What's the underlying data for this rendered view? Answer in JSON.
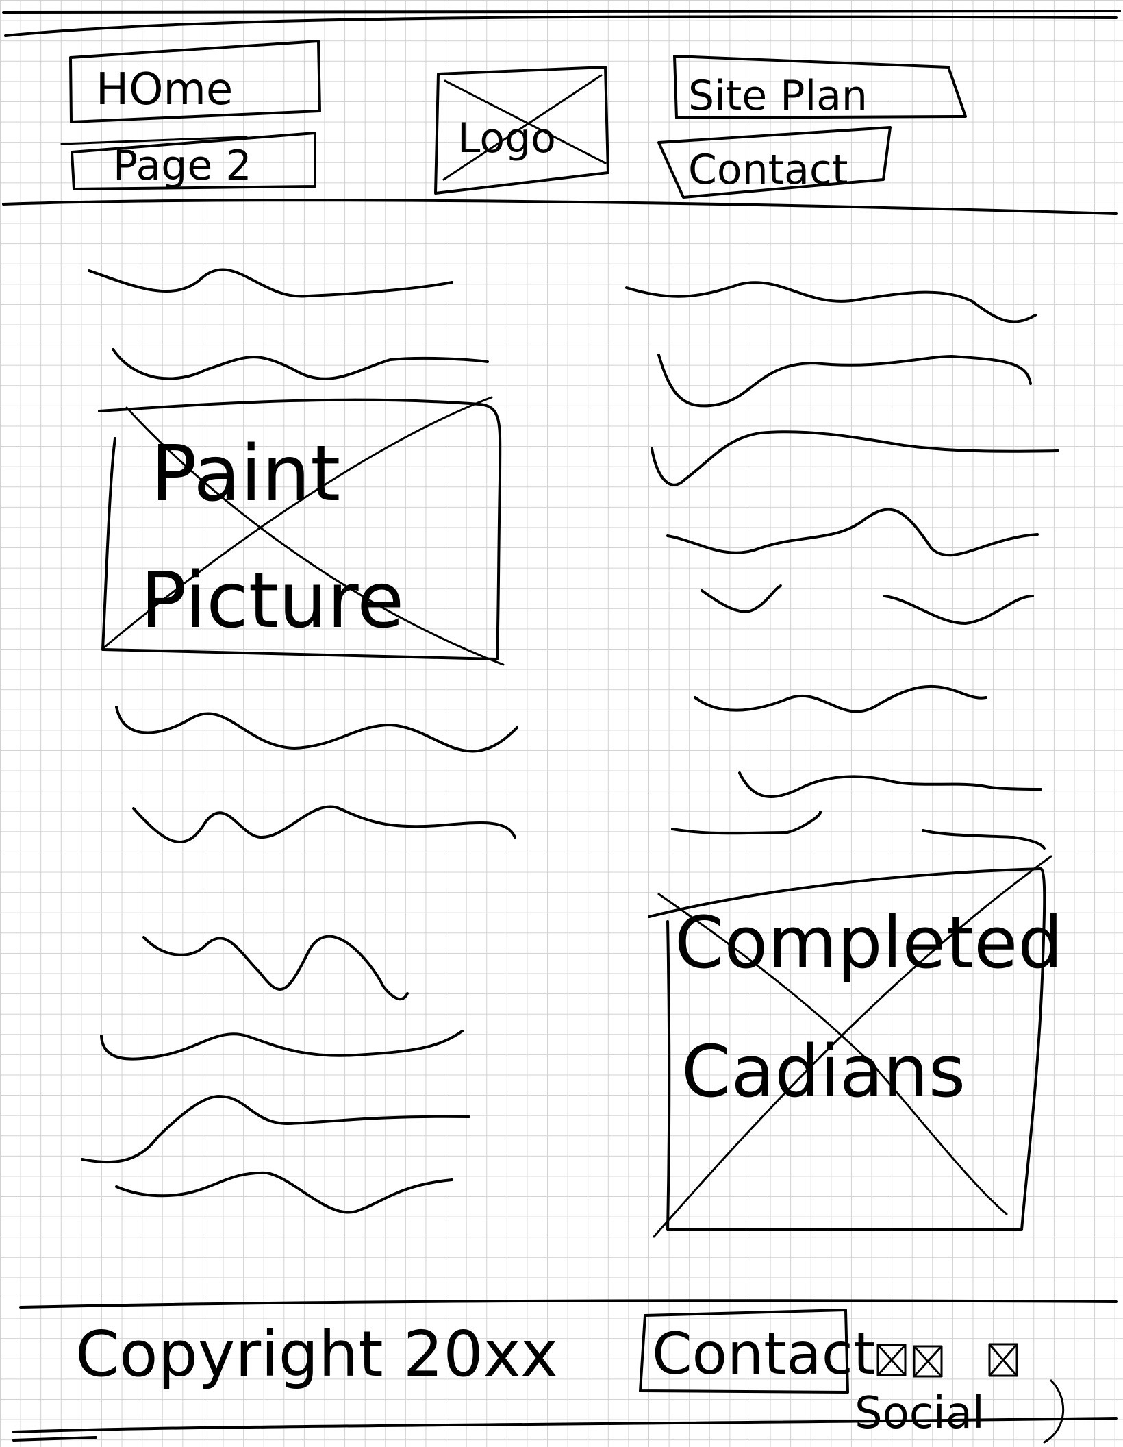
{
  "nav": {
    "home_label": "HOme",
    "page2_label": "Page 2",
    "site_plan_label": "Site Plan",
    "contact_label": "Contact"
  },
  "logo": {
    "label": "Logo"
  },
  "main": {
    "paint_picture": {
      "line1": "Paint",
      "line2": "Picture"
    },
    "completed_cadians": {
      "line1": "Completed",
      "line2": "Cadians"
    }
  },
  "footer": {
    "copyright": "Copyright 20xx",
    "contact_label": "Contact",
    "social_label": "Social"
  }
}
